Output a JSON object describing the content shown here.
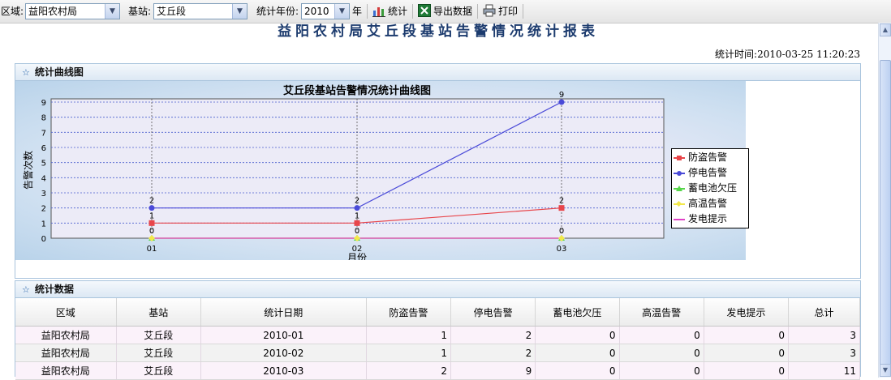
{
  "toolbar": {
    "region_label": "区域:",
    "region_value": "益阳农村局",
    "station_label": "基站:",
    "station_value": "艾丘段",
    "year_label": "统计年份:",
    "year_value": "2010",
    "year_suffix": "年",
    "stat_button": "统计",
    "export_button": "导出数据",
    "print_button": "打印"
  },
  "report": {
    "title": "益阳农村局艾丘段基站告警情况统计报表",
    "timestamp": "统计时间:2010-03-25 11:20:23"
  },
  "chart_panel": {
    "header": "统计曲线图"
  },
  "chart_data": {
    "type": "line",
    "title": "艾丘段基站告警情况统计曲线图",
    "xlabel": "月份",
    "ylabel": "告警次数",
    "categories": [
      "01",
      "02",
      "03"
    ],
    "ylim": [
      0,
      9
    ],
    "yticks": [
      "0",
      "1",
      "2",
      "3",
      "4",
      "5",
      "6",
      "7",
      "8",
      "9"
    ],
    "grid": true,
    "legend_position": "right",
    "series": [
      {
        "name": "防盗告警",
        "values": [
          1,
          1,
          2
        ],
        "color": "#e8454a",
        "marker": "square"
      },
      {
        "name": "停电告警",
        "values": [
          2,
          2,
          9
        ],
        "color": "#4a4ad8",
        "marker": "circle"
      },
      {
        "name": "蓄电池欠压",
        "values": [
          0,
          0,
          0
        ],
        "color": "#56d64a",
        "marker": "triangle"
      },
      {
        "name": "高温告警",
        "values": [
          0,
          0,
          0
        ],
        "color": "#f2e84a",
        "marker": "diamond"
      },
      {
        "name": "发电提示",
        "values": [
          0,
          0,
          0
        ],
        "color": "#e040c8",
        "marker": "line"
      }
    ]
  },
  "data_panel": {
    "header": "统计数据",
    "columns": [
      "区域",
      "基站",
      "统计日期",
      "防盗告警",
      "停电告警",
      "蓄电池欠压",
      "高温告警",
      "发电提示",
      "总计"
    ],
    "rows": [
      [
        "益阳农村局",
        "艾丘段",
        "2010-01",
        "1",
        "2",
        "0",
        "0",
        "0",
        "3"
      ],
      [
        "益阳农村局",
        "艾丘段",
        "2010-02",
        "1",
        "2",
        "0",
        "0",
        "0",
        "3"
      ],
      [
        "益阳农村局",
        "艾丘段",
        "2010-03",
        "2",
        "9",
        "0",
        "0",
        "0",
        "11"
      ]
    ]
  },
  "icons": {
    "chart_icon": "bar-chart-icon",
    "export_icon": "excel-icon",
    "print_icon": "printer-icon",
    "panel_icon": "star-icon"
  }
}
